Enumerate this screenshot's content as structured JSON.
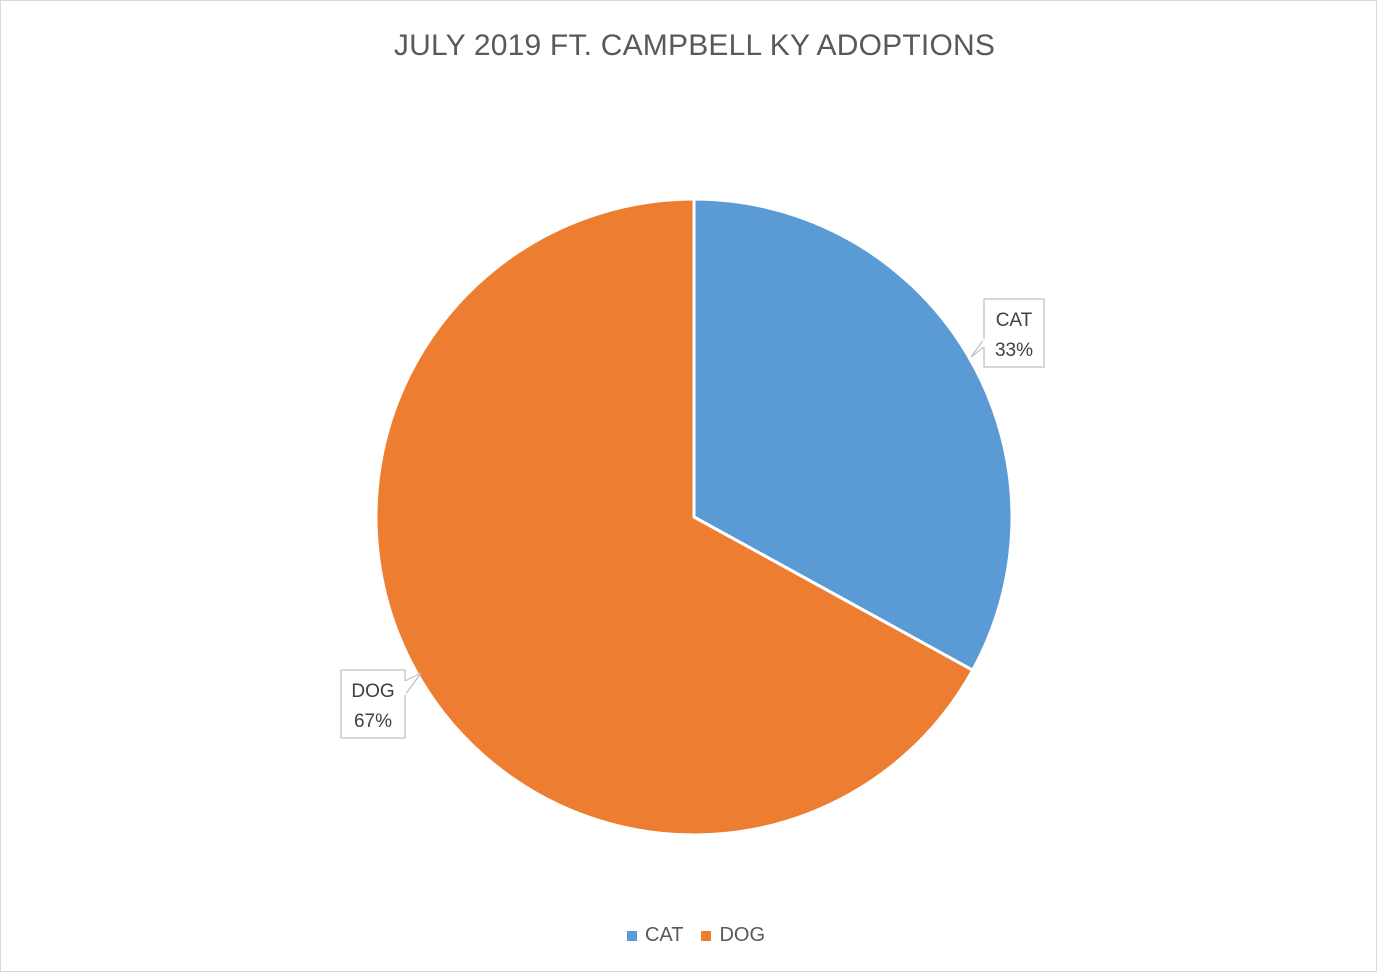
{
  "chart_data": {
    "type": "pie",
    "title": "JULY 2019 FT. CAMPBELL KY ADOPTIONS",
    "categories": [
      "CAT",
      "DOG"
    ],
    "values": [
      33,
      67
    ],
    "labels": [
      "33%",
      "67%"
    ],
    "colors": [
      "#5b9bd5",
      "#ed7d31"
    ],
    "legend_position": "bottom"
  }
}
